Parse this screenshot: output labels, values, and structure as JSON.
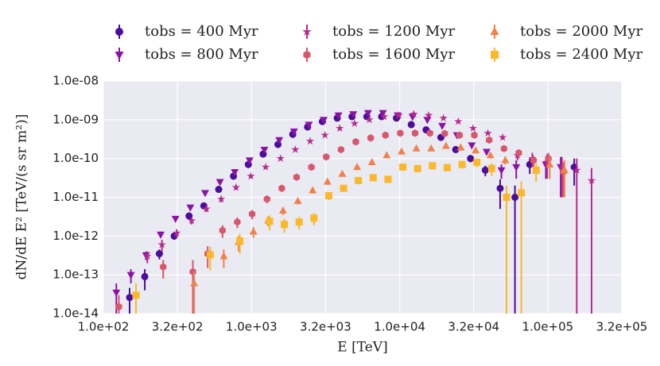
{
  "chart_data": {
    "type": "scatter",
    "x_label": "E [TeV]",
    "y_label": "dN/dE E² [TeV/(s sr m²)]",
    "log_x": true,
    "log_y": true,
    "grid": true,
    "xlim": [
      100,
      316228
    ],
    "ylim": [
      1e-14,
      1e-08
    ],
    "xticks": [
      {
        "value": 100,
        "label": "1.0e+02"
      },
      {
        "value": 316.2,
        "label": "3.2e+02"
      },
      {
        "value": 1000,
        "label": "1.0e+03"
      },
      {
        "value": 3162,
        "label": "3.2e+03"
      },
      {
        "value": 10000,
        "label": "1.0e+04"
      },
      {
        "value": 31620,
        "label": "3.2e+04"
      },
      {
        "value": 100000,
        "label": "1.0e+05"
      },
      {
        "value": 316200,
        "label": "3.2e+05"
      }
    ],
    "yticks": [
      {
        "value": 1e-14,
        "label": "1.0e-14"
      },
      {
        "value": 1e-13,
        "label": "1.0e-13"
      },
      {
        "value": 1e-12,
        "label": "1.0e-12"
      },
      {
        "value": 1e-11,
        "label": "1.0e-11"
      },
      {
        "value": 1e-10,
        "label": "1.0e-10"
      },
      {
        "value": 1e-09,
        "label": "1.0e-09"
      },
      {
        "value": 1e-08,
        "label": "1.0e-08"
      }
    ],
    "x": [
      126,
      158,
      200,
      251,
      316,
      398,
      501,
      631,
      794,
      1000,
      1259,
      1585,
      1995,
      2512,
      3162,
      3981,
      5012,
      6310,
      7943,
      10000,
      12589,
      15849,
      19953,
      25119,
      31623,
      39811,
      50119,
      63096,
      79433,
      100000,
      125893,
      158489,
      199526
    ],
    "series": [
      {
        "name": "tobs = 400 Myr",
        "color": "#4c0c9c",
        "marker": "circle",
        "values": [
          null,
          2.6e-14,
          9e-14,
          3.5e-13,
          1e-12,
          3.3e-12,
          6e-12,
          1.6e-11,
          3.5e-11,
          7e-11,
          1.3e-10,
          2.3e-10,
          4.2e-10,
          6.5e-10,
          9e-10,
          1.1e-09,
          1.2e-09,
          1.2e-09,
          1.2e-09,
          1.1e-09,
          7.5e-10,
          5.5e-10,
          3.5e-10,
          1.7e-10,
          1e-10,
          5e-11,
          1.7e-11,
          1e-11,
          7e-11,
          null,
          null,
          6e-11,
          null
        ],
        "errors": [
          null,
          2e-14,
          5e-14,
          1e-13,
          2e-13,
          5e-13,
          1e-12,
          2e-12,
          3e-12,
          5e-12,
          8e-12,
          1.2e-11,
          2e-11,
          3e-11,
          4e-11,
          5e-11,
          6e-11,
          6e-11,
          6e-11,
          6e-11,
          5e-11,
          4e-11,
          4e-11,
          3e-11,
          2e-11,
          1.5e-11,
          1.2e-11,
          1e-11,
          3e-11,
          null,
          null,
          4e-11,
          null
        ]
      },
      {
        "name": "tobs = 800 Myr",
        "color": "#8c12a6",
        "marker": "triangle-down",
        "values": [
          3.5e-14,
          1e-13,
          3.2e-13,
          1.1e-12,
          2.8e-12,
          5.5e-12,
          1.3e-11,
          2.5e-11,
          4.5e-11,
          9e-11,
          1.7e-10,
          3e-10,
          5e-10,
          7.5e-10,
          1e-09,
          1.3e-09,
          1.4e-09,
          1.5e-09,
          1.5e-09,
          1.3e-09,
          1.2e-09,
          1e-09,
          7e-10,
          4e-10,
          2.2e-10,
          1.5e-10,
          5e-11,
          6e-11,
          null,
          7e-11,
          6e-11,
          null,
          null
        ],
        "errors": [
          2.5e-14,
          4e-14,
          8e-14,
          2e-13,
          4e-13,
          7e-13,
          1.5e-12,
          2.5e-12,
          4e-12,
          7e-12,
          1.1e-11,
          1.6e-11,
          2.5e-11,
          3.5e-11,
          4.5e-11,
          6e-11,
          6e-11,
          6e-11,
          6e-11,
          6e-11,
          6e-11,
          5e-11,
          4e-11,
          3e-11,
          2.5e-11,
          2e-11,
          2e-11,
          3e-11,
          null,
          4e-11,
          5e-11,
          null,
          null
        ]
      },
      {
        "name": "tobs = 1200 Myr",
        "color": "#b42a8f",
        "marker": "star",
        "values": [
          null,
          null,
          3e-13,
          6e-13,
          1.2e-12,
          2.5e-12,
          5e-12,
          9e-12,
          1.8e-11,
          3.5e-11,
          6e-11,
          1e-10,
          1.7e-10,
          2.8e-10,
          4e-10,
          6e-10,
          8e-10,
          1e-09,
          1.2e-09,
          1.3e-09,
          1.4e-09,
          1.3e-09,
          1.1e-09,
          9e-10,
          6e-10,
          4.5e-10,
          3.5e-10,
          1.2e-10,
          1e-10,
          8e-11,
          6e-11,
          5e-11,
          2.7e-11
        ],
        "errors": [
          null,
          null,
          1e-13,
          2e-13,
          3e-13,
          5e-13,
          8e-13,
          1.5e-12,
          2.5e-12,
          4e-12,
          6e-12,
          9e-12,
          1.3e-11,
          1.8e-11,
          2.5e-11,
          3e-11,
          4e-11,
          5e-11,
          5e-11,
          6e-11,
          6e-11,
          6e-11,
          5e-11,
          5e-11,
          4e-11,
          4e-11,
          4e-11,
          3e-11,
          4e-11,
          5e-11,
          5e-11,
          5e-11,
          3e-11
        ]
      },
      {
        "name": "tobs = 1600 Myr",
        "color": "#d9566d",
        "marker": "hexagon",
        "values": [
          1.5e-14,
          null,
          null,
          1.6e-13,
          null,
          1.2e-13,
          3.5e-13,
          1.4e-12,
          2.3e-12,
          3.7e-12,
          9e-12,
          1.7e-11,
          3.3e-11,
          6e-11,
          1.1e-10,
          1.7e-10,
          2.7e-10,
          3.4e-10,
          4e-10,
          4.5e-10,
          4.5e-10,
          4.5e-10,
          4.4e-10,
          4e-10,
          4e-10,
          3e-10,
          1.8e-10,
          1.4e-10,
          9e-11,
          1e-10,
          4.5e-11,
          null,
          null
        ],
        "errors": [
          1.5e-14,
          null,
          null,
          8e-14,
          null,
          1.2e-13,
          2e-13,
          5e-13,
          7e-13,
          1e-12,
          2e-12,
          3e-12,
          5e-12,
          8e-12,
          1.2e-11,
          1.6e-11,
          2e-11,
          2.5e-11,
          3e-11,
          3e-11,
          3e-11,
          3e-11,
          3e-11,
          3e-11,
          3e-11,
          3e-11,
          3e-11,
          3e-11,
          3e-11,
          4e-11,
          3.5e-11,
          null,
          null
        ]
      },
      {
        "name": "tobs = 2000 Myr",
        "color": "#f0814c",
        "marker": "triangle-up",
        "values": [
          null,
          null,
          null,
          null,
          null,
          6e-14,
          null,
          3e-13,
          7e-13,
          1.3e-12,
          2.5e-12,
          4.5e-12,
          8e-12,
          1.5e-11,
          2.5e-11,
          4e-11,
          6e-11,
          8e-11,
          1.2e-10,
          1.5e-10,
          1.8e-10,
          1.8e-10,
          2.1e-10,
          1.9e-10,
          1.6e-10,
          1.2e-10,
          9e-11,
          null,
          null,
          7e-11,
          5e-11,
          null,
          null
        ],
        "errors": [
          null,
          null,
          null,
          null,
          null,
          6e-14,
          null,
          1.5e-13,
          3e-13,
          4e-13,
          7e-13,
          1e-12,
          1.5e-12,
          2.5e-12,
          4e-12,
          5e-12,
          7e-12,
          9e-12,
          1.2e-11,
          1.5e-11,
          1.7e-11,
          1.7e-11,
          2e-11,
          2e-11,
          2e-11,
          2e-11,
          2e-11,
          null,
          null,
          4e-11,
          4e-11,
          null,
          null
        ]
      },
      {
        "name": "tobs = 2400 Myr",
        "color": "#fbb829",
        "marker": "square",
        "values": [
          null,
          3e-14,
          null,
          null,
          null,
          null,
          3.3e-13,
          null,
          7.5e-13,
          null,
          2.4e-12,
          2e-12,
          2.3e-12,
          2.9e-12,
          1.1e-11,
          1.7e-11,
          2.7e-11,
          3.2e-11,
          2.9e-11,
          6e-11,
          5.5e-11,
          6.5e-11,
          5.8e-11,
          7e-11,
          8e-11,
          5.5e-11,
          1e-11,
          1.3e-11,
          5e-11,
          null,
          null,
          null,
          null
        ],
        "errors": [
          null,
          3e-14,
          null,
          null,
          null,
          null,
          2e-13,
          null,
          4e-13,
          null,
          1e-12,
          8e-13,
          8e-13,
          1e-12,
          2.5e-12,
          3e-12,
          4e-12,
          5e-12,
          5e-12,
          8e-12,
          8e-12,
          1e-11,
          1e-11,
          1.5e-11,
          2e-11,
          2e-11,
          1e-11,
          1.3e-11,
          2.5e-11,
          null,
          null,
          null,
          null
        ]
      }
    ]
  }
}
